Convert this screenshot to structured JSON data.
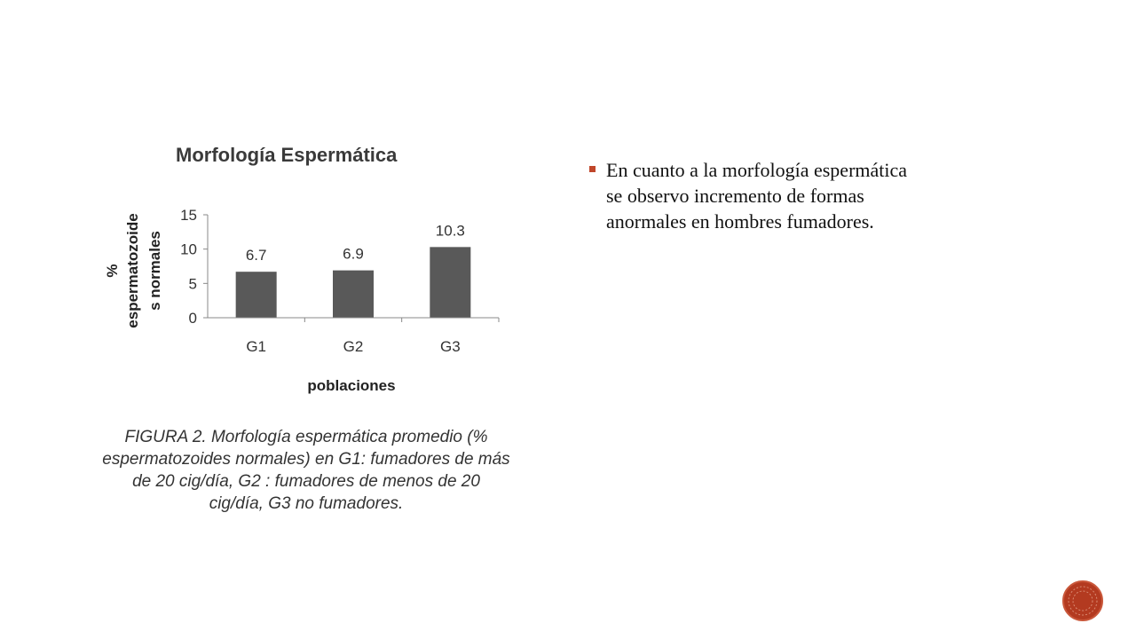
{
  "chart_data": {
    "type": "bar",
    "title": "Morfología Espermática",
    "categories": [
      "G1",
      "G2",
      "G3"
    ],
    "values": [
      6.7,
      6.9,
      10.3
    ],
    "data_labels": [
      "6.7",
      "6.9",
      "10.3"
    ],
    "xlabel": "poblaciones",
    "ylabel_lines": [
      "%",
      "espermatozoide",
      "s normales"
    ],
    "ylim": [
      0,
      15
    ],
    "yticks": [
      "0",
      "5",
      "10",
      "15"
    ],
    "grid": false,
    "colors": {
      "bar": "#595959"
    }
  },
  "caption": {
    "lines": [
      "FIGURA 2. Morfología espermática promedio (%",
      "espermatozoides normales) en G1: fumadores de más",
      "de 20 cig/día, G2 : fumadores de menos de 20",
      "cig/día, G3 no fumadores."
    ]
  },
  "bullets": {
    "item1": {
      "lines": [
        "En cuanto a la morfología espermática",
        "se observo incremento de formas",
        "anormales en hombres fumadores."
      ]
    }
  },
  "theme": {
    "accent": "#b33a20"
  },
  "nav": {
    "icon": "next-slide-icon"
  }
}
